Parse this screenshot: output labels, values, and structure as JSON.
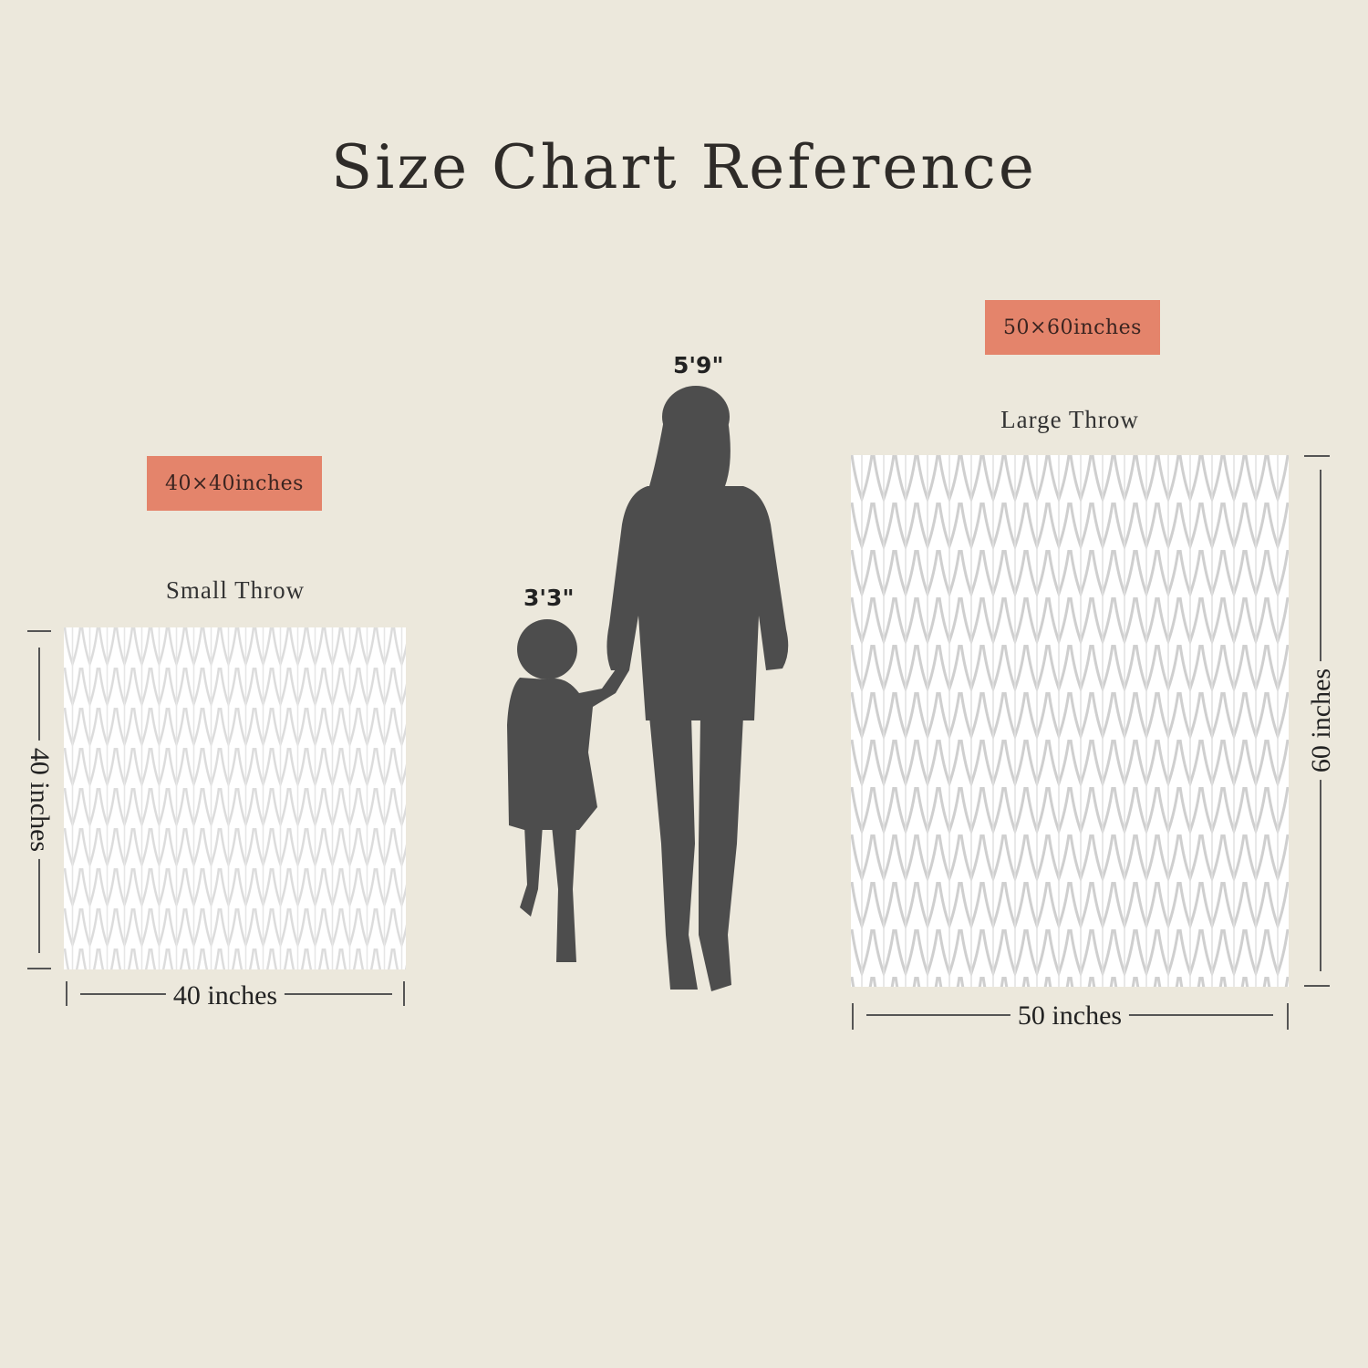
{
  "title": "Size Chart Reference",
  "small_throw": {
    "badge": "40×40inches",
    "name": "Small Throw",
    "height_label": "40 inches",
    "width_label": "40 inches"
  },
  "large_throw": {
    "badge": "50×60inches",
    "name": "Large Throw",
    "height_label": "60 inches",
    "width_label": "50 inches"
  },
  "figures": {
    "adult_height": "5'9\"",
    "child_height": "3'3\""
  },
  "colors": {
    "background": "#ece8dc",
    "badge": "#e4846b",
    "silhouette": "#4d4d4d",
    "blanket": "#ffffff",
    "knit_stitch": "#d9d9d9"
  }
}
